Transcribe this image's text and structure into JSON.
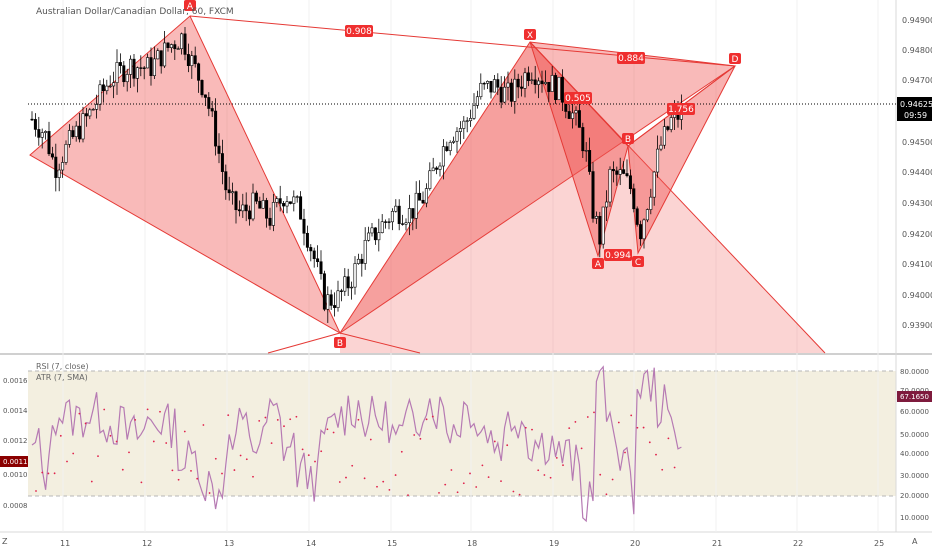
{
  "header": {
    "title": "Australian Dollar/Canadian Dollar, 60, FXCM"
  },
  "colors": {
    "pattern_fill": "#ef5350",
    "pattern_line": "#e53935",
    "label_bg": "#ef2f2f",
    "up_candle": "#ffffff",
    "down_candle": "#000000",
    "rsi_line": "#b67ab3",
    "rsi_band": "#efead6",
    "atr_dot": "#e0204a",
    "price_badge": "#000000",
    "rsi_badge": "#7e1b3d",
    "atr_badge": "#8b0000"
  },
  "price_axis": {
    "ticks": [
      "0.94900",
      "0.94800",
      "0.94700",
      "0.94500",
      "0.94400",
      "0.94300",
      "0.94200",
      "0.94100",
      "0.94000",
      "0.93900"
    ],
    "current_price": "0.94625",
    "countdown": "09:59"
  },
  "time_axis": {
    "labels": [
      "11",
      "12",
      "13",
      "14",
      "15",
      "18",
      "19",
      "20",
      "21",
      "22",
      "25"
    ],
    "left_corner": "Z",
    "right_corner": "A"
  },
  "patterns": {
    "points": [
      "A",
      "B",
      "X",
      "A",
      "B",
      "C",
      "D"
    ],
    "ratios": [
      "0.908",
      "0.884",
      "0.505",
      "1.756",
      "0.994"
    ]
  },
  "indicators": {
    "rsi_label": "RSI (7, close)",
    "atr_label": "ATR (7, SMA)",
    "rsi_ticks": [
      "80.0000",
      "70.0000",
      "60.0000",
      "50.0000",
      "40.0000",
      "30.0000",
      "20.0000",
      "10.0000"
    ],
    "atr_ticks": [
      "0.0016",
      "0.0014",
      "0.0012",
      "0.0010",
      "0.0008"
    ],
    "rsi_value": "67.1650",
    "atr_value": "0.0011"
  },
  "chart_data": [
    {
      "type": "candlestick",
      "title": "Australian Dollar/Canadian Dollar, 60, FXCM",
      "ylim": [
        0.9383,
        0.9497
      ],
      "x": [
        "11",
        "12",
        "13",
        "14",
        "15",
        "18",
        "19",
        "20",
        "21",
        "22",
        "25"
      ],
      "last_price": 0.94625,
      "path_points": [
        {
          "label": "",
          "time": "10",
          "price": 0.9445
        },
        {
          "label": "A",
          "time": "12",
          "price": 0.9493
        },
        {
          "label": "B",
          "time": "14",
          "price": 0.9388
        },
        {
          "label": "",
          "time": "15",
          "price": 0.9394
        },
        {
          "label": "X",
          "time": "18",
          "price": 0.9483
        },
        {
          "label": "A",
          "time": "19",
          "price": 0.9413
        },
        {
          "label": "B",
          "time": "19",
          "price": 0.9449
        },
        {
          "label": "C",
          "time": "20",
          "price": 0.9414
        },
        {
          "label": "D",
          "time": "21",
          "price": 0.9475
        }
      ],
      "ratios": [
        0.908,
        0.884,
        0.505,
        1.756,
        0.994
      ]
    },
    {
      "type": "line",
      "series": [
        {
          "name": "RSI (7, close)",
          "last": 67.165
        },
        {
          "name": "ATR (7, SMA)",
          "last": 0.0011
        }
      ],
      "rsi_band": [
        20,
        80
      ],
      "rsi_ylim": [
        5,
        85
      ],
      "atr_ylim": [
        0.0006,
        0.0017
      ]
    }
  ]
}
